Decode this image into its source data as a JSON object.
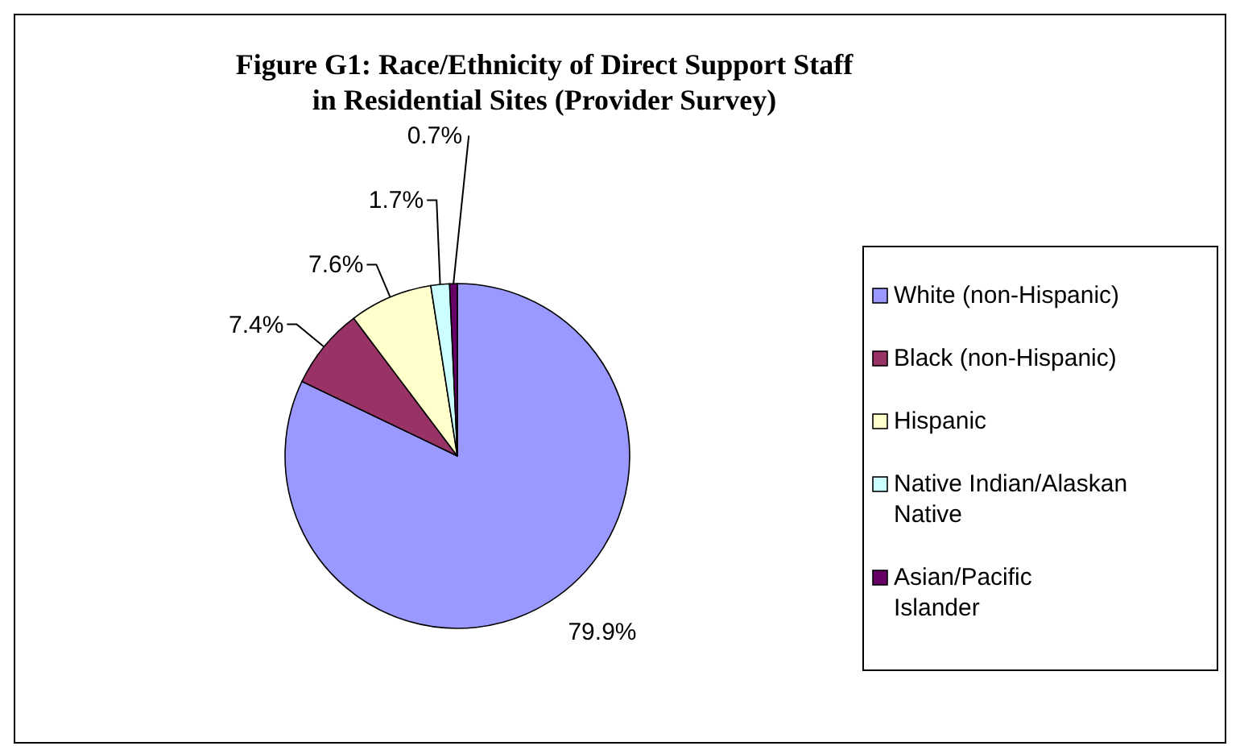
{
  "chart_data": {
    "type": "pie",
    "title": "Figure G1:  Race/Ethnicity of Direct Support Staff in Residential Sites (Provider Survey)",
    "categories": [
      "White (non-Hispanic)",
      "Black (non-Hispanic)",
      "Hispanic",
      "Native Indian/Alaskan Native",
      "Asian/Pacific Islander"
    ],
    "values": [
      79.9,
      7.4,
      7.6,
      1.7,
      0.7
    ],
    "colors": [
      "#9999ff",
      "#993366",
      "#ffffcc",
      "#ccffff",
      "#660066"
    ],
    "value_labels": [
      "79.9%",
      "7.4%",
      "7.6%",
      "1.7%",
      "0.7%"
    ],
    "legend": "right"
  }
}
